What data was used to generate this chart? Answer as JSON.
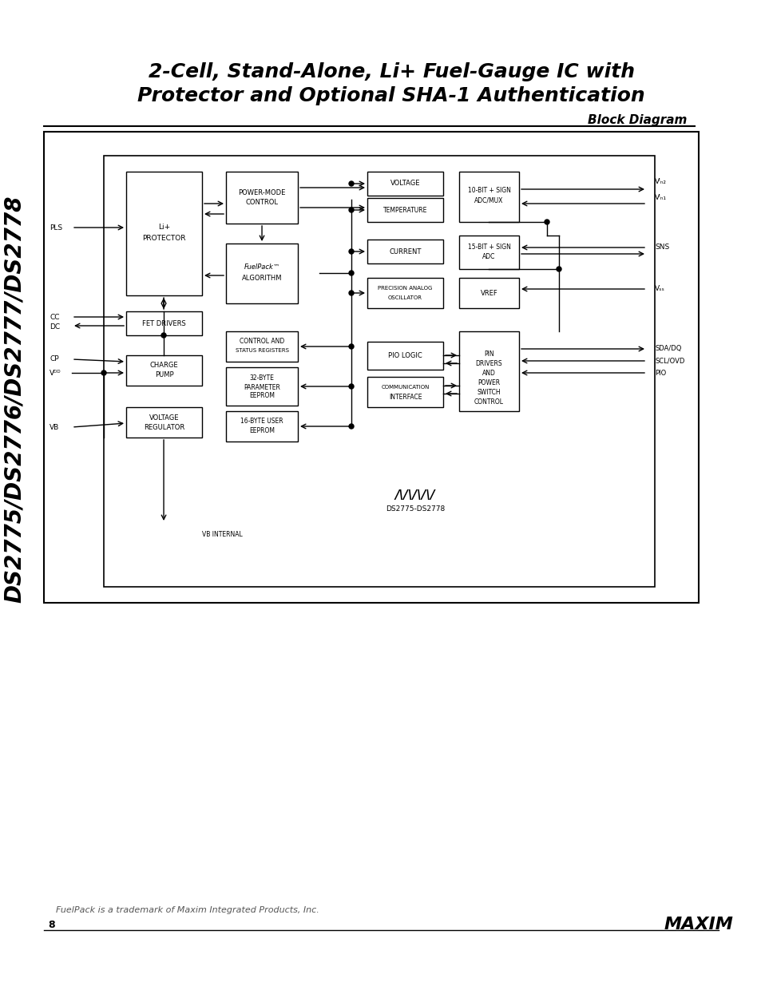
{
  "title_line1": "2-Cell, Stand-Alone, Li+ Fuel-Gauge IC with",
  "title_line2": "Protector and Optional SHA-1 Authentication",
  "section_label": "Block Diagram",
  "side_text": "DS2775/DS2776/DS2777/DS2778",
  "footer_trademark": "FuelPack is a trademark of Maxim Integrated Products, Inc.",
  "footer_page": "8",
  "footer_logo": "MAXIM",
  "diagram_logo": "MAXIM",
  "diagram_part": "DS2775-DS2778",
  "bg_color": "#ffffff",
  "box_color": "#000000",
  "text_color": "#000000"
}
